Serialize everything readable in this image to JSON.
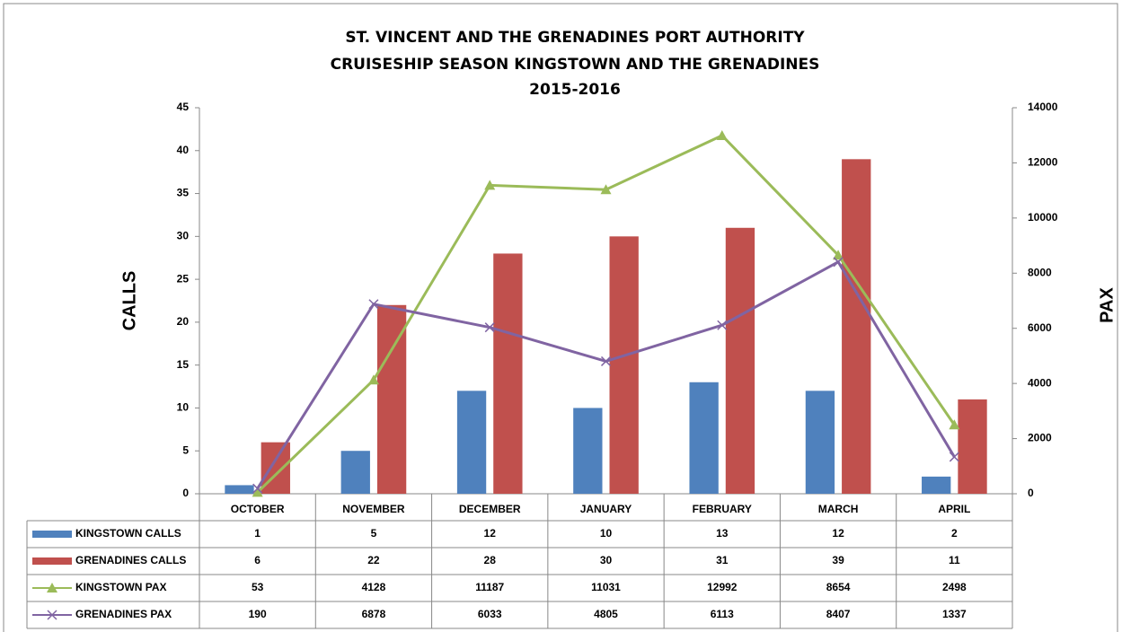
{
  "chart_data": {
    "type": "bar-line",
    "title": [
      "ST. VINCENT AND THE GRENADINES PORT AUTHORITY",
      "CRUISESHIP SEASON KINGSTOWN AND THE GRENADINES",
      "2015-2016"
    ],
    "ylabel": "CALLS",
    "y2label": "PAX",
    "categories": [
      "OCTOBER",
      "NOVEMBER",
      "DECEMBER",
      "JANUARY",
      "FEBRUARY",
      "MARCH",
      "APRIL"
    ],
    "series": [
      {
        "name": "KINGSTOWN CALLS",
        "type": "bar",
        "color": "#4f81bd",
        "values": [
          1,
          5,
          12,
          10,
          13,
          12,
          2
        ]
      },
      {
        "name": "GRENADINES CALLS",
        "type": "bar",
        "color": "#c0504d",
        "values": [
          6,
          22,
          28,
          30,
          31,
          39,
          11
        ]
      },
      {
        "name": "KINGSTOWN PAX",
        "type": "line",
        "marker": "triangle",
        "axis": "y2",
        "color": "#9bbb59",
        "values": [
          53,
          4128,
          11187,
          11031,
          12992,
          8654,
          2498
        ]
      },
      {
        "name": "GRENADINES PAX",
        "type": "line",
        "marker": "x",
        "axis": "y2",
        "color": "#8064a2",
        "values": [
          190,
          6878,
          6033,
          4805,
          6113,
          8407,
          1337
        ]
      }
    ],
    "ylim": [
      0,
      45
    ],
    "yticks": [
      0,
      5,
      10,
      15,
      20,
      25,
      30,
      35,
      40,
      45
    ],
    "y2lim": [
      0,
      14000
    ],
    "y2ticks": [
      0,
      2000,
      4000,
      6000,
      8000,
      10000,
      12000,
      14000
    ],
    "grid": false
  }
}
